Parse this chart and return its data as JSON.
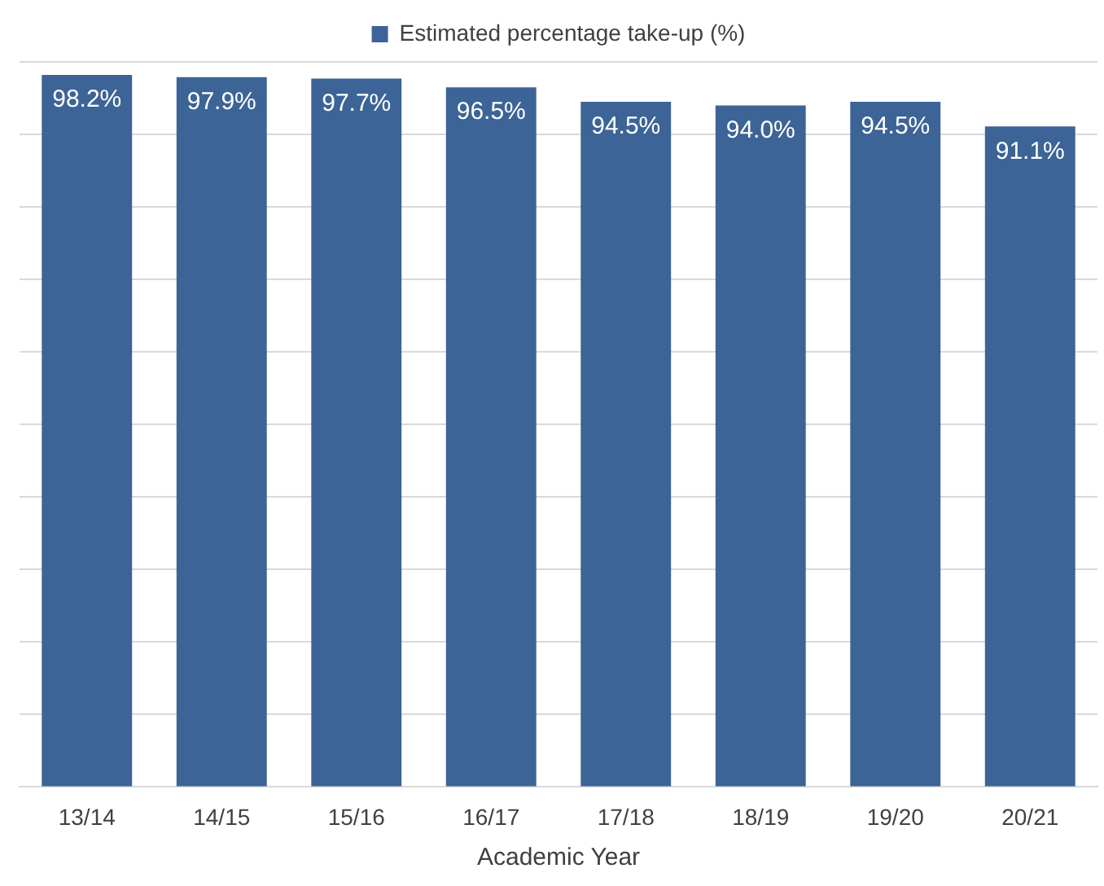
{
  "chart_data": {
    "type": "bar",
    "xlabel": "Academic Year",
    "categories": [
      "13/14",
      "14/15",
      "15/16",
      "16/17",
      "17/18",
      "18/19",
      "19/20",
      "20/21"
    ],
    "series": [
      {
        "name": "Estimated percentage take-up (%)",
        "color": "#3c6496",
        "values": [
          98.2,
          97.9,
          97.7,
          96.5,
          94.5,
          94.0,
          94.5,
          91.1
        ],
        "value_labels": [
          "98.2%",
          "97.9%",
          "97.7%",
          "96.5%",
          "94.5%",
          "94.0%",
          "94.5%",
          "91.1%"
        ]
      }
    ],
    "ylim": [
      0,
      100
    ],
    "yticks": [
      {
        "value": 0,
        "label": null
      },
      {
        "value": 10,
        "label": null
      },
      {
        "value": 20,
        "label": null
      },
      {
        "value": 30,
        "label": null
      },
      {
        "value": 40,
        "label": null
      },
      {
        "value": 50,
        "label": null
      },
      {
        "value": 60,
        "label": null
      },
      {
        "value": 70,
        "label": null
      },
      {
        "value": 80,
        "label": null
      },
      {
        "value": 90,
        "label": null
      },
      {
        "value": 100,
        "label": null
      }
    ],
    "grid": "y",
    "legend": "top",
    "tick_labels": "x"
  }
}
